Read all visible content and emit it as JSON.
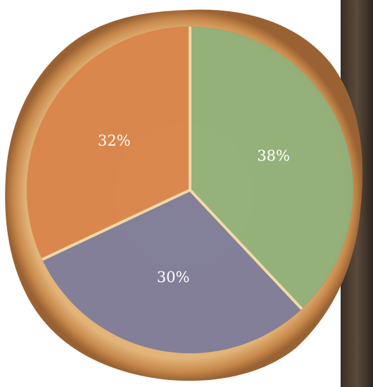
{
  "chart_data": {
    "type": "pie",
    "values": [
      38,
      30,
      32
    ],
    "value_labels": [
      "38%",
      "30%",
      "32%"
    ],
    "colors": [
      "#8fb07a",
      "#7c7b9a",
      "#d98349"
    ],
    "start_angle": 0,
    "direction": "clockwise"
  }
}
